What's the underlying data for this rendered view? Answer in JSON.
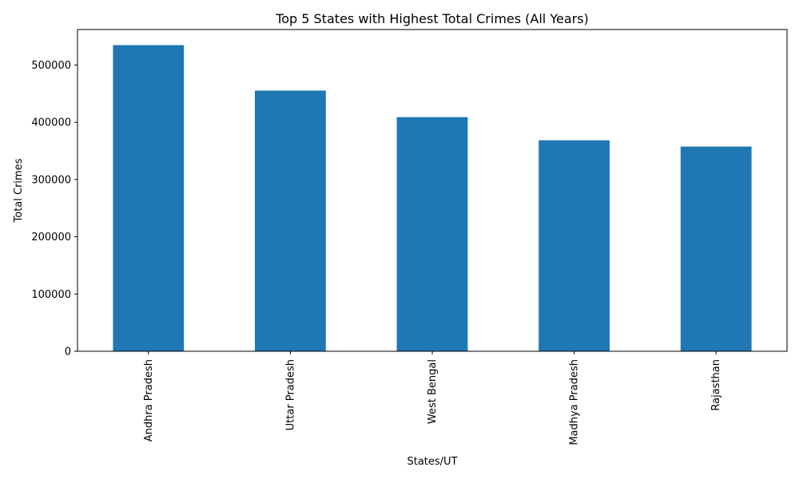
{
  "chart_data": {
    "type": "bar",
    "title": "Top 5 States with Highest Total Crimes (All Years)",
    "xlabel": "States/UT",
    "ylabel": "Total Crimes",
    "categories": [
      "Andhra Pradesh",
      "Uttar Pradesh",
      "West Bengal",
      "Madhya Pradesh",
      "Rajasthan"
    ],
    "values": [
      534800,
      455400,
      409000,
      368600,
      357600
    ],
    "ylim": [
      0,
      562000
    ],
    "yticks": [
      0,
      100000,
      200000,
      300000,
      400000,
      500000
    ],
    "ytick_labels": [
      "0",
      "100000",
      "200000",
      "300000",
      "400000",
      "500000"
    ],
    "bar_color": "#1f77b4",
    "grid": false,
    "legend": "none"
  }
}
